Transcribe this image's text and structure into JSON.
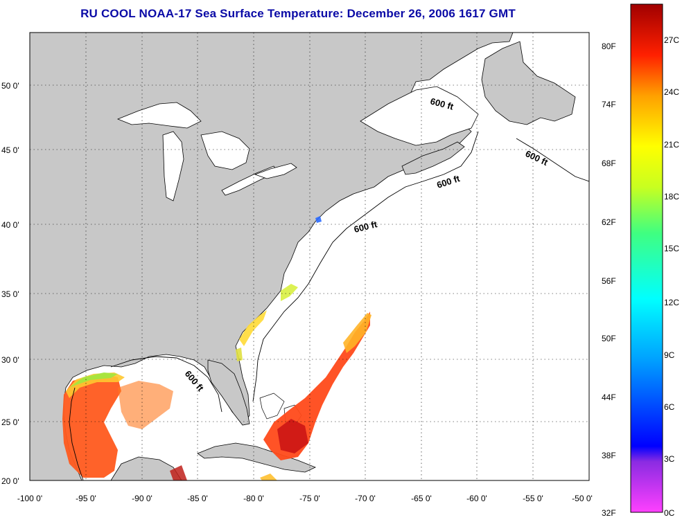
{
  "title": "RU COOL  NOAA-17  Sea Surface Temperature:  December 26, 2006 1617 GMT",
  "axes": {
    "x_ticks": [
      "-100 0'",
      "-95 0'",
      "-90 0'",
      "-85 0'",
      "-80 0'",
      "-75 0'",
      "-70 0'",
      "-65 0'",
      "-60 0'",
      "-55 0'",
      "-50 0'"
    ],
    "y_ticks": [
      "50 0'",
      "45 0'",
      "40 0'",
      "35 0'",
      "30 0'",
      "25 0'",
      "20 0'"
    ],
    "lon_range": [
      -100,
      -50
    ],
    "lat_range": [
      20,
      52.3
    ]
  },
  "contour_labels": [
    "600 ft",
    "600 ft",
    "600 ft",
    "600 ft",
    "600 ft"
  ],
  "colorbar": {
    "fahrenheit": [
      "80F",
      "74F",
      "68F",
      "62F",
      "56F",
      "50F",
      "44F",
      "38F",
      "32F"
    ],
    "celsius": [
      "27C",
      "24C",
      "21C",
      "18C",
      "15C",
      "12C",
      "9C",
      "6C",
      "3C",
      "0C"
    ]
  },
  "colors": {
    "land": "#c8c8c8",
    "ocean_no_data": "#ffffff",
    "title_color": "#0a0aa6"
  }
}
